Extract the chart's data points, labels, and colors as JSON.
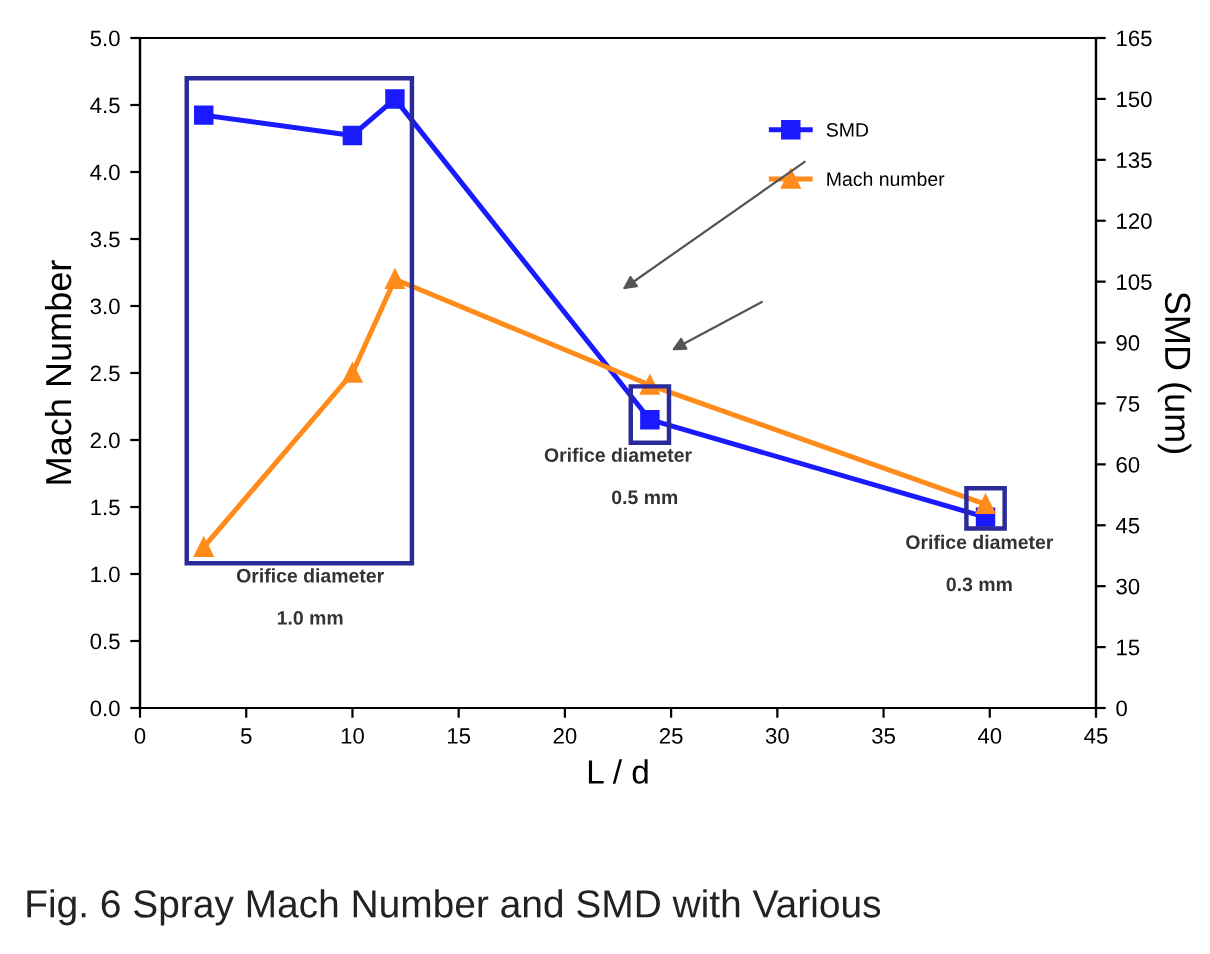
{
  "chart_data": {
    "type": "line",
    "xlabel": "L / d",
    "ylabel": "Mach Number",
    "y2label": "SMD (um)",
    "xlim": [
      0,
      45
    ],
    "xticks": [
      0,
      5,
      10,
      15,
      20,
      25,
      30,
      35,
      40,
      45
    ],
    "ylim": [
      0,
      5
    ],
    "yticks": [
      {
        "value": 0,
        "label": "0.0"
      },
      0.5,
      {
        "value": 1,
        "label": "1.0"
      },
      1.5,
      {
        "value": 2,
        "label": "2.0"
      },
      2.5,
      {
        "value": 3,
        "label": "3.0"
      },
      3.5,
      {
        "value": 4,
        "label": "4.0"
      },
      4.5,
      {
        "value": 5,
        "label": "5.0"
      }
    ],
    "y2lim": [
      0,
      165
    ],
    "y2ticks": [
      0,
      15,
      30,
      45,
      60,
      75,
      90,
      105,
      120,
      135,
      150,
      165
    ],
    "legend": "top right",
    "grid": false,
    "series": [
      {
        "name": "SMD",
        "color": "#1a1aff",
        "axis": "y2",
        "marker": "square",
        "x": [
          3,
          10,
          12,
          24,
          39.8
        ],
        "values": [
          146,
          141,
          150,
          71,
          47
        ]
      },
      {
        "name": "Mach number",
        "color": "#ff8c1a",
        "marker": "triangle",
        "x": [
          3,
          10,
          12,
          24,
          39.8
        ],
        "values": [
          1.2,
          2.5,
          3.2,
          2.41,
          1.52
        ]
      }
    ],
    "annotations": [
      "Orifice diameter",
      "1.0 mm",
      "Orifice diameter",
      "0.5 mm",
      "Orifice diameter",
      "0.3 mm",
      "Fig. 6 Spray Mach Number and SMD with Various"
    ]
  }
}
